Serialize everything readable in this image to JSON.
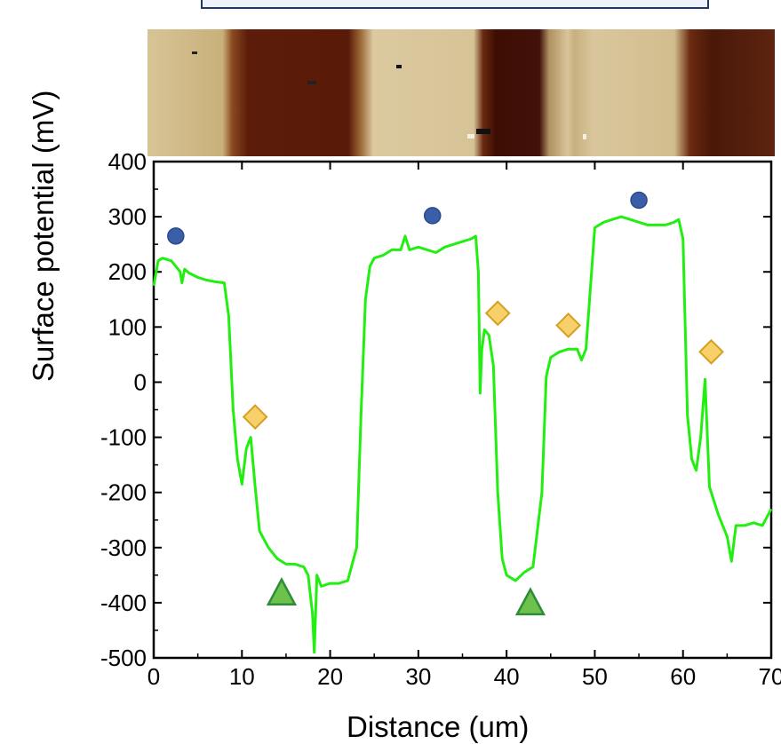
{
  "chart_data": {
    "type": "line",
    "title": "",
    "xlabel": "Distance (um)",
    "ylabel": "Surface potential (mV)",
    "xlim": [
      0,
      70
    ],
    "ylim": [
      -500,
      400
    ],
    "x_ticks": [
      "0",
      "10",
      "20",
      "30",
      "40",
      "50",
      "60",
      "70"
    ],
    "y_ticks": [
      "400",
      "300",
      "200",
      "100",
      "0",
      "-100",
      "-200",
      "-300",
      "-400",
      "-500"
    ],
    "line_color": "#22ee11",
    "series": [
      {
        "name": "",
        "x": [
          0,
          0.5,
          1,
          2,
          3,
          3.2,
          3.5,
          4,
          5,
          6,
          7,
          8,
          8.5,
          9,
          9.5,
          10,
          10.5,
          11,
          11.5,
          12,
          13,
          14,
          15,
          16,
          17,
          17.5,
          18,
          18.2,
          18.5,
          19,
          20,
          21,
          22,
          23,
          23.5,
          24,
          24.5,
          25,
          26,
          27,
          28,
          28.5,
          29,
          30,
          31,
          32,
          33,
          34,
          35,
          36,
          36.5,
          36.8,
          37,
          37.2,
          37.5,
          38,
          38.5,
          39,
          39.5,
          40,
          41,
          42,
          43,
          44,
          44.5,
          45,
          46,
          47,
          48,
          48.5,
          49,
          50,
          51,
          52,
          53,
          54,
          55,
          56,
          57,
          58,
          59,
          59.5,
          60,
          60.5,
          61,
          61.5,
          62,
          62.5,
          63,
          64,
          65,
          65.5,
          66,
          67,
          68,
          69,
          70
        ],
        "y": [
          175,
          220,
          225,
          220,
          200,
          180,
          205,
          198,
          190,
          185,
          182,
          180,
          120,
          -50,
          -140,
          -185,
          -120,
          -100,
          -190,
          -270,
          -300,
          -320,
          -330,
          -330,
          -335,
          -350,
          -420,
          -490,
          -350,
          -370,
          -365,
          -365,
          -360,
          -300,
          -60,
          150,
          210,
          225,
          230,
          240,
          240,
          265,
          240,
          245,
          240,
          235,
          245,
          250,
          255,
          260,
          265,
          200,
          -20,
          60,
          95,
          85,
          30,
          -200,
          -320,
          -350,
          -360,
          -345,
          -335,
          -200,
          10,
          45,
          55,
          60,
          60,
          40,
          60,
          280,
          290,
          295,
          300,
          295,
          290,
          285,
          285,
          285,
          290,
          295,
          260,
          -60,
          -140,
          -160,
          -100,
          5,
          -190,
          -240,
          -280,
          -325,
          -260,
          -260,
          -255,
          -260,
          -230
        ]
      }
    ],
    "markers": [
      {
        "shape": "circle",
        "color": "#3a5ea8",
        "x": 2.5,
        "y": 265
      },
      {
        "shape": "circle",
        "color": "#3a5ea8",
        "x": 31.6,
        "y": 302
      },
      {
        "shape": "circle",
        "color": "#3a5ea8",
        "x": 55,
        "y": 330
      },
      {
        "shape": "diamond",
        "color": "#f7d06a",
        "x": 11.5,
        "y": -63
      },
      {
        "shape": "diamond",
        "color": "#f7d06a",
        "x": 39,
        "y": 125
      },
      {
        "shape": "diamond",
        "color": "#f7d06a",
        "x": 47,
        "y": 103
      },
      {
        "shape": "diamond",
        "color": "#f7d06a",
        "x": 63.2,
        "y": 55
      },
      {
        "shape": "triangle",
        "color": "#6cc24a",
        "x": 14.5,
        "y": -382
      },
      {
        "shape": "triangle",
        "color": "#6cc24a",
        "x": 42.7,
        "y": -400
      }
    ],
    "grid": false
  },
  "colors": {
    "afm_light": "#d9c79a",
    "afm_dark": "#5a1a0a",
    "box_border": "#1f3864"
  }
}
